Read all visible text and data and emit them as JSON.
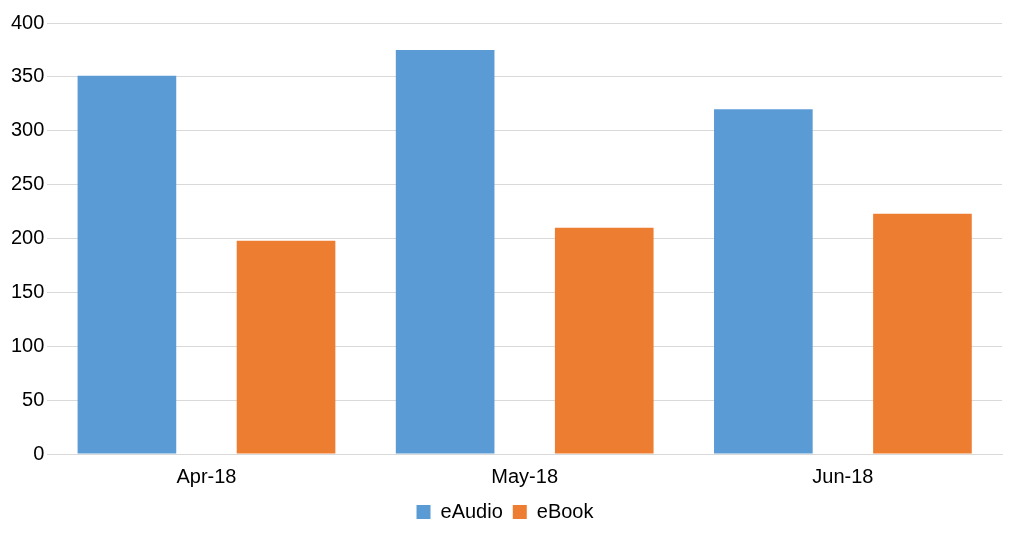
{
  "chart_data": {
    "type": "bar",
    "categories": [
      "Apr-18",
      "May-18",
      "Jun-18"
    ],
    "series": [
      {
        "name": "eAudio",
        "color": "#5b9bd5",
        "values": [
          351,
          375,
          320
        ]
      },
      {
        "name": "eBook",
        "color": "#ed7d31",
        "values": [
          198,
          210,
          223
        ]
      }
    ],
    "ylim": [
      0,
      400
    ],
    "yticks": [
      0,
      50,
      100,
      150,
      200,
      250,
      300,
      350,
      400
    ],
    "grid": "y",
    "legend": "bottom"
  }
}
